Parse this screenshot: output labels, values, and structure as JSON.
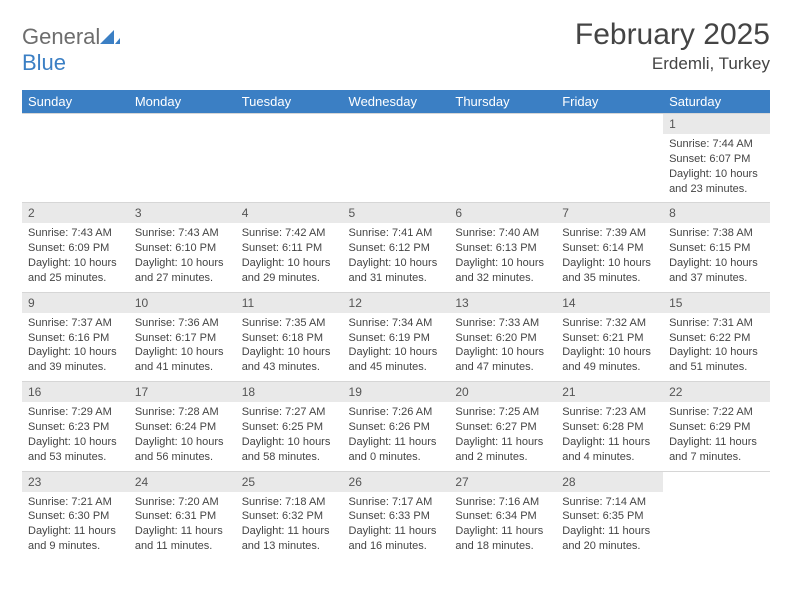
{
  "brand": {
    "part1": "General",
    "part2": "Blue"
  },
  "title": "February 2025",
  "location": "Erdemli, Turkey",
  "colors": {
    "header_bg": "#3b7fc4",
    "header_text": "#ffffff",
    "daynum_bg": "#e9e9e9",
    "text": "#444444",
    "logo_gray": "#6d6d6d",
    "logo_blue": "#3b7fc4"
  },
  "day_headers": [
    "Sunday",
    "Monday",
    "Tuesday",
    "Wednesday",
    "Thursday",
    "Friday",
    "Saturday"
  ],
  "weeks": [
    {
      "nums": [
        "",
        "",
        "",
        "",
        "",
        "",
        "1"
      ],
      "cells": [
        null,
        null,
        null,
        null,
        null,
        null,
        {
          "sunrise": "Sunrise: 7:44 AM",
          "sunset": "Sunset: 6:07 PM",
          "daylight": "Daylight: 10 hours and 23 minutes."
        }
      ]
    },
    {
      "nums": [
        "2",
        "3",
        "4",
        "5",
        "6",
        "7",
        "8"
      ],
      "cells": [
        {
          "sunrise": "Sunrise: 7:43 AM",
          "sunset": "Sunset: 6:09 PM",
          "daylight": "Daylight: 10 hours and 25 minutes."
        },
        {
          "sunrise": "Sunrise: 7:43 AM",
          "sunset": "Sunset: 6:10 PM",
          "daylight": "Daylight: 10 hours and 27 minutes."
        },
        {
          "sunrise": "Sunrise: 7:42 AM",
          "sunset": "Sunset: 6:11 PM",
          "daylight": "Daylight: 10 hours and 29 minutes."
        },
        {
          "sunrise": "Sunrise: 7:41 AM",
          "sunset": "Sunset: 6:12 PM",
          "daylight": "Daylight: 10 hours and 31 minutes."
        },
        {
          "sunrise": "Sunrise: 7:40 AM",
          "sunset": "Sunset: 6:13 PM",
          "daylight": "Daylight: 10 hours and 32 minutes."
        },
        {
          "sunrise": "Sunrise: 7:39 AM",
          "sunset": "Sunset: 6:14 PM",
          "daylight": "Daylight: 10 hours and 35 minutes."
        },
        {
          "sunrise": "Sunrise: 7:38 AM",
          "sunset": "Sunset: 6:15 PM",
          "daylight": "Daylight: 10 hours and 37 minutes."
        }
      ]
    },
    {
      "nums": [
        "9",
        "10",
        "11",
        "12",
        "13",
        "14",
        "15"
      ],
      "cells": [
        {
          "sunrise": "Sunrise: 7:37 AM",
          "sunset": "Sunset: 6:16 PM",
          "daylight": "Daylight: 10 hours and 39 minutes."
        },
        {
          "sunrise": "Sunrise: 7:36 AM",
          "sunset": "Sunset: 6:17 PM",
          "daylight": "Daylight: 10 hours and 41 minutes."
        },
        {
          "sunrise": "Sunrise: 7:35 AM",
          "sunset": "Sunset: 6:18 PM",
          "daylight": "Daylight: 10 hours and 43 minutes."
        },
        {
          "sunrise": "Sunrise: 7:34 AM",
          "sunset": "Sunset: 6:19 PM",
          "daylight": "Daylight: 10 hours and 45 minutes."
        },
        {
          "sunrise": "Sunrise: 7:33 AM",
          "sunset": "Sunset: 6:20 PM",
          "daylight": "Daylight: 10 hours and 47 minutes."
        },
        {
          "sunrise": "Sunrise: 7:32 AM",
          "sunset": "Sunset: 6:21 PM",
          "daylight": "Daylight: 10 hours and 49 minutes."
        },
        {
          "sunrise": "Sunrise: 7:31 AM",
          "sunset": "Sunset: 6:22 PM",
          "daylight": "Daylight: 10 hours and 51 minutes."
        }
      ]
    },
    {
      "nums": [
        "16",
        "17",
        "18",
        "19",
        "20",
        "21",
        "22"
      ],
      "cells": [
        {
          "sunrise": "Sunrise: 7:29 AM",
          "sunset": "Sunset: 6:23 PM",
          "daylight": "Daylight: 10 hours and 53 minutes."
        },
        {
          "sunrise": "Sunrise: 7:28 AM",
          "sunset": "Sunset: 6:24 PM",
          "daylight": "Daylight: 10 hours and 56 minutes."
        },
        {
          "sunrise": "Sunrise: 7:27 AM",
          "sunset": "Sunset: 6:25 PM",
          "daylight": "Daylight: 10 hours and 58 minutes."
        },
        {
          "sunrise": "Sunrise: 7:26 AM",
          "sunset": "Sunset: 6:26 PM",
          "daylight": "Daylight: 11 hours and 0 minutes."
        },
        {
          "sunrise": "Sunrise: 7:25 AM",
          "sunset": "Sunset: 6:27 PM",
          "daylight": "Daylight: 11 hours and 2 minutes."
        },
        {
          "sunrise": "Sunrise: 7:23 AM",
          "sunset": "Sunset: 6:28 PM",
          "daylight": "Daylight: 11 hours and 4 minutes."
        },
        {
          "sunrise": "Sunrise: 7:22 AM",
          "sunset": "Sunset: 6:29 PM",
          "daylight": "Daylight: 11 hours and 7 minutes."
        }
      ]
    },
    {
      "nums": [
        "23",
        "24",
        "25",
        "26",
        "27",
        "28",
        ""
      ],
      "cells": [
        {
          "sunrise": "Sunrise: 7:21 AM",
          "sunset": "Sunset: 6:30 PM",
          "daylight": "Daylight: 11 hours and 9 minutes."
        },
        {
          "sunrise": "Sunrise: 7:20 AM",
          "sunset": "Sunset: 6:31 PM",
          "daylight": "Daylight: 11 hours and 11 minutes."
        },
        {
          "sunrise": "Sunrise: 7:18 AM",
          "sunset": "Sunset: 6:32 PM",
          "daylight": "Daylight: 11 hours and 13 minutes."
        },
        {
          "sunrise": "Sunrise: 7:17 AM",
          "sunset": "Sunset: 6:33 PM",
          "daylight": "Daylight: 11 hours and 16 minutes."
        },
        {
          "sunrise": "Sunrise: 7:16 AM",
          "sunset": "Sunset: 6:34 PM",
          "daylight": "Daylight: 11 hours and 18 minutes."
        },
        {
          "sunrise": "Sunrise: 7:14 AM",
          "sunset": "Sunset: 6:35 PM",
          "daylight": "Daylight: 11 hours and 20 minutes."
        },
        null
      ]
    }
  ]
}
